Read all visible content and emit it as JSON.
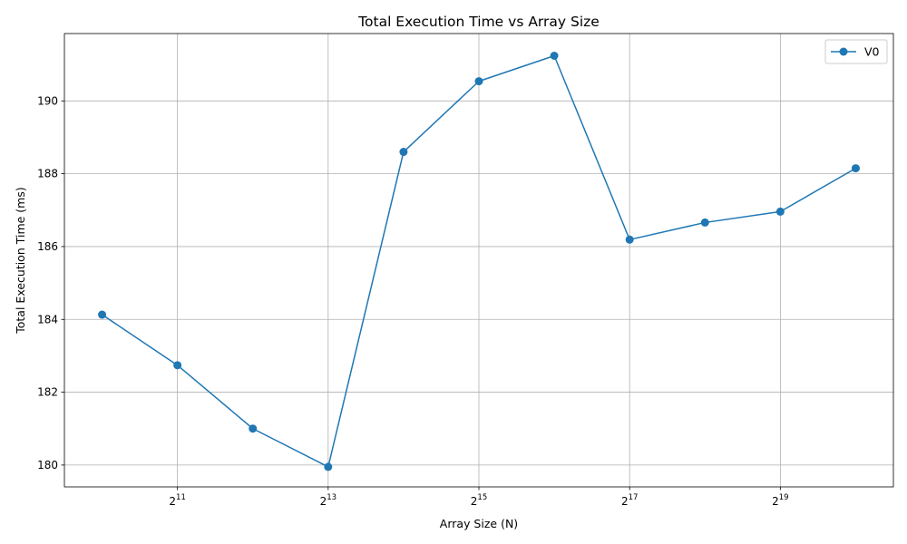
{
  "chart_data": {
    "type": "line",
    "title": "Total Execution Time vs Array Size",
    "xlabel": "Array Size (N)",
    "ylabel": "Total Execution Time (ms)",
    "x_scale": "log2",
    "x_ticks": [
      {
        "value": 2048,
        "base": "2",
        "exp": "11"
      },
      {
        "value": 8192,
        "base": "2",
        "exp": "13"
      },
      {
        "value": 32768,
        "base": "2",
        "exp": "15"
      },
      {
        "value": 131072,
        "base": "2",
        "exp": "17"
      },
      {
        "value": 524288,
        "base": "2",
        "exp": "19"
      }
    ],
    "y_ticks": [
      "180",
      "182",
      "184",
      "186",
      "188",
      "190"
    ],
    "ylim": [
      179.4,
      191.85
    ],
    "grid": true,
    "legend_position": "top-right",
    "series": [
      {
        "name": "V0",
        "color": "#1f77b4",
        "marker": "circle",
        "x": [
          1024,
          2048,
          4096,
          8192,
          16384,
          32768,
          65536,
          131072,
          262144,
          524288,
          1048576
        ],
        "y": [
          184.13,
          182.74,
          181.0,
          179.95,
          188.6,
          190.54,
          191.24,
          186.19,
          186.66,
          186.96,
          188.15
        ]
      }
    ]
  }
}
